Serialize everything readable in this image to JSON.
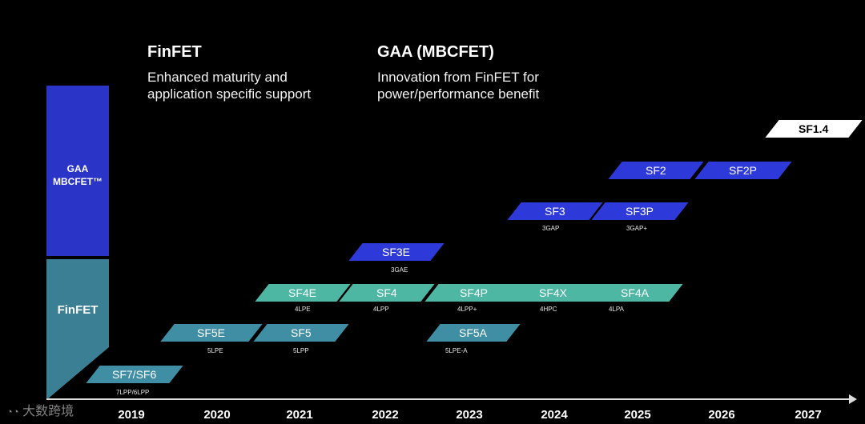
{
  "headers": {
    "finfet_title": "FinFET",
    "finfet_sub1": "Enhanced maturity and",
    "finfet_sub2": "application specific support",
    "gaa_title": "GAA (MBCFET)",
    "gaa_sub1": "Innovation from FinFET for",
    "gaa_sub2": "power/performance benefit"
  },
  "sidebar": {
    "gaa_line1": "GAA",
    "gaa_line2": "MBCFET™",
    "finfet": "FinFET"
  },
  "colors": {
    "gaa": "#2d39d8",
    "finfet": "#3f8ea3",
    "finfet_light": "#4db7a4",
    "highlight": "#ffffff"
  },
  "nodes": {
    "sf7": {
      "label": "SF7/SF6",
      "code": "7LPP/6LPP"
    },
    "sf5e": {
      "label": "SF5E",
      "code": "5LPE"
    },
    "sf5": {
      "label": "SF5",
      "code": "5LPP"
    },
    "sf4e": {
      "label": "SF4E",
      "code": "4LPE"
    },
    "sf4": {
      "label": "SF4",
      "code": "4LPP"
    },
    "sf3e": {
      "label": "SF3E",
      "code": "3GAE"
    },
    "sf4p": {
      "label": "SF4P",
      "code": "4LPP+"
    },
    "sf5a": {
      "label": "SF5A",
      "code": "5LPE-A"
    },
    "sf4x": {
      "label": "SF4X",
      "code": "4HPC"
    },
    "sf3": {
      "label": "SF3",
      "code": "3GAP"
    },
    "sf4a": {
      "label": "SF4A",
      "code": "4LPA"
    },
    "sf3p": {
      "label": "SF3P",
      "code": "3GAP+"
    },
    "sf2": {
      "label": "SF2"
    },
    "sf2p": {
      "label": "SF2P"
    },
    "sf14": {
      "label": "SF1.4"
    }
  },
  "years": [
    "2019",
    "2020",
    "2021",
    "2022",
    "2023",
    "2024",
    "2025",
    "2026",
    "2027"
  ],
  "watermark": "大数跨境"
}
